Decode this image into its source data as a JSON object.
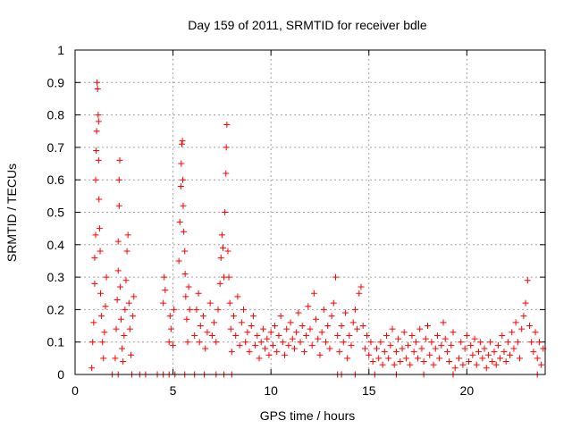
{
  "chart_data": {
    "type": "scatter",
    "title": "Day 159 of 2011, SRMTID for receiver bdle",
    "xlabel": "GPS time / hours",
    "ylabel": "SRMTID / TECUs",
    "xlim": [
      0,
      24
    ],
    "ylim": [
      0,
      1
    ],
    "grid": true,
    "marker": "plus",
    "color": "#ff0000",
    "x_ticks": [
      0,
      5,
      10,
      15,
      20
    ],
    "x_tick_labels": [
      "0",
      "5",
      "10",
      "15",
      "20"
    ],
    "y_ticks": [
      0,
      0.1,
      0.2,
      0.3,
      0.4,
      0.5,
      0.6,
      0.7,
      0.8,
      0.9,
      1
    ],
    "y_tick_labels": [
      "0",
      "0.1",
      "0.2",
      "0.3",
      "0.4",
      "0.5",
      "0.6",
      "0.7",
      "0.8",
      "0.9",
      "1"
    ],
    "series": [
      {
        "name": "SRMTID",
        "points": [
          [
            0.85,
            0.02
          ],
          [
            0.9,
            0.1
          ],
          [
            0.95,
            0.16
          ],
          [
            1.0,
            0.28
          ],
          [
            1.0,
            0.36
          ],
          [
            1.05,
            0.43
          ],
          [
            1.05,
            0.6
          ],
          [
            1.08,
            0.69
          ],
          [
            1.1,
            0.75
          ],
          [
            1.12,
            0.9
          ],
          [
            1.15,
            0.88
          ],
          [
            1.18,
            0.8
          ],
          [
            1.2,
            0.78
          ],
          [
            1.2,
            0.66
          ],
          [
            1.22,
            0.54
          ],
          [
            1.25,
            0.45
          ],
          [
            1.28,
            0.38
          ],
          [
            1.3,
            0.25
          ],
          [
            1.35,
            0.18
          ],
          [
            1.4,
            0.1
          ],
          [
            1.45,
            0.05
          ],
          [
            1.5,
            0.13
          ],
          [
            1.55,
            0.21
          ],
          [
            1.6,
            0.3
          ],
          [
            2.05,
            0.05
          ],
          [
            2.1,
            0.14
          ],
          [
            2.15,
            0.23
          ],
          [
            2.2,
            0.32
          ],
          [
            2.2,
            0.41
          ],
          [
            2.25,
            0.52
          ],
          [
            2.25,
            0.6
          ],
          [
            2.28,
            0.66
          ],
          [
            2.3,
            0.27
          ],
          [
            2.35,
            0.17
          ],
          [
            2.4,
            0.08
          ],
          [
            2.45,
            0.04
          ],
          [
            2.5,
            0.12
          ],
          [
            2.55,
            0.2
          ],
          [
            2.6,
            0.29
          ],
          [
            2.65,
            0.38
          ],
          [
            2.7,
            0.43
          ],
          [
            2.75,
            0.22
          ],
          [
            2.8,
            0.14
          ],
          [
            2.85,
            0.06
          ],
          [
            2.95,
            0.18
          ],
          [
            3.0,
            0.24
          ],
          [
            4.5,
            0.22
          ],
          [
            4.55,
            0.3
          ],
          [
            4.6,
            0.26
          ],
          [
            4.8,
            0.1
          ],
          [
            4.85,
            0.18
          ],
          [
            4.9,
            0.14
          ],
          [
            5.0,
            0.09
          ],
          [
            5.05,
            0.2
          ],
          [
            5.3,
            0.35
          ],
          [
            5.35,
            0.47
          ],
          [
            5.4,
            0.58
          ],
          [
            5.42,
            0.65
          ],
          [
            5.45,
            0.71
          ],
          [
            5.48,
            0.72
          ],
          [
            5.5,
            0.6
          ],
          [
            5.52,
            0.52
          ],
          [
            5.55,
            0.44
          ],
          [
            5.6,
            0.38
          ],
          [
            5.62,
            0.31
          ],
          [
            5.65,
            0.24
          ],
          [
            5.7,
            0.17
          ],
          [
            5.75,
            0.1
          ],
          [
            5.8,
            0.27
          ],
          [
            5.85,
            0.2
          ],
          [
            6.1,
            0.12
          ],
          [
            6.2,
            0.2
          ],
          [
            6.3,
            0.25
          ],
          [
            6.35,
            0.1
          ],
          [
            6.4,
            0.15
          ],
          [
            6.55,
            0.18
          ],
          [
            6.65,
            0.08
          ],
          [
            6.75,
            0.13
          ],
          [
            6.9,
            0.22
          ],
          [
            7.0,
            0.12
          ],
          [
            7.1,
            0.16
          ],
          [
            7.2,
            0.1
          ],
          [
            7.3,
            0.2
          ],
          [
            7.4,
            0.28
          ],
          [
            7.45,
            0.36
          ],
          [
            7.5,
            0.43
          ],
          [
            7.55,
            0.39
          ],
          [
            7.6,
            0.3
          ],
          [
            7.65,
            0.5
          ],
          [
            7.7,
            0.62
          ],
          [
            7.72,
            0.7
          ],
          [
            7.75,
            0.77
          ],
          [
            7.8,
            0.38
          ],
          [
            7.85,
            0.3
          ],
          [
            7.9,
            0.22
          ],
          [
            7.95,
            0.14
          ],
          [
            8.0,
            0.07
          ],
          [
            8.1,
            0.18
          ],
          [
            8.2,
            0.12
          ],
          [
            8.3,
            0.24
          ],
          [
            8.4,
            0.09
          ],
          [
            8.5,
            0.16
          ],
          [
            8.6,
            0.2
          ],
          [
            8.7,
            0.1
          ],
          [
            8.8,
            0.13
          ],
          [
            8.9,
            0.07
          ],
          [
            9.0,
            0.15
          ],
          [
            9.1,
            0.18
          ],
          [
            9.2,
            0.09
          ],
          [
            9.3,
            0.12
          ],
          [
            9.4,
            0.05
          ],
          [
            9.5,
            0.1
          ],
          [
            9.6,
            0.14
          ],
          [
            9.7,
            0.08
          ],
          [
            9.8,
            0.11
          ],
          [
            9.9,
            0.06
          ],
          [
            10.0,
            0.13
          ],
          [
            10.1,
            0.09
          ],
          [
            10.2,
            0.15
          ],
          [
            10.3,
            0.07
          ],
          [
            10.4,
            0.12
          ],
          [
            10.5,
            0.18
          ],
          [
            10.6,
            0.1
          ],
          [
            10.7,
            0.06
          ],
          [
            10.8,
            0.14
          ],
          [
            10.9,
            0.09
          ],
          [
            11.0,
            0.16
          ],
          [
            11.1,
            0.11
          ],
          [
            11.2,
            0.08
          ],
          [
            11.3,
            0.13
          ],
          [
            11.4,
            0.19
          ],
          [
            11.5,
            0.1
          ],
          [
            11.6,
            0.15
          ],
          [
            11.7,
            0.07
          ],
          [
            11.8,
            0.12
          ],
          [
            11.9,
            0.21
          ],
          [
            12.0,
            0.14
          ],
          [
            12.1,
            0.09
          ],
          [
            12.2,
            0.25
          ],
          [
            12.3,
            0.17
          ],
          [
            12.4,
            0.11
          ],
          [
            12.5,
            0.06
          ],
          [
            12.6,
            0.13
          ],
          [
            12.7,
            0.2
          ],
          [
            12.8,
            0.1
          ],
          [
            12.9,
            0.15
          ],
          [
            13.0,
            0.08
          ],
          [
            13.1,
            0.18
          ],
          [
            13.2,
            0.22
          ],
          [
            13.3,
            0.3
          ],
          [
            13.4,
            0.12
          ],
          [
            13.5,
            0.07
          ],
          [
            13.6,
            0.15
          ],
          [
            13.7,
            0.1
          ],
          [
            13.8,
            0.19
          ],
          [
            13.9,
            0.05
          ],
          [
            14.0,
            0.12
          ],
          [
            14.1,
            0.09
          ],
          [
            14.2,
            0.16
          ],
          [
            14.3,
            0.2
          ],
          [
            14.4,
            0.14
          ],
          [
            14.5,
            0.25
          ],
          [
            14.6,
            0.27
          ],
          [
            14.7,
            0.15
          ],
          [
            14.8,
            0.08
          ],
          [
            14.9,
            0.12
          ],
          [
            15.0,
            0.06
          ],
          [
            15.1,
            0.1
          ],
          [
            15.2,
            0.04
          ],
          [
            15.4,
            0.08
          ],
          [
            15.5,
            0.05
          ],
          [
            15.6,
            0.1
          ],
          [
            15.7,
            0.03
          ],
          [
            15.8,
            0.07
          ],
          [
            15.9,
            0.12
          ],
          [
            16.0,
            0.05
          ],
          [
            16.1,
            0.09
          ],
          [
            16.2,
            0.14
          ],
          [
            16.3,
            0.03
          ],
          [
            16.4,
            0.07
          ],
          [
            16.5,
            0.11
          ],
          [
            16.6,
            0.04
          ],
          [
            16.7,
            0.08
          ],
          [
            16.8,
            0.13
          ],
          [
            16.9,
            0.05
          ],
          [
            17.0,
            0.09
          ],
          [
            17.1,
            0.03
          ],
          [
            17.2,
            0.12
          ],
          [
            17.3,
            0.07
          ],
          [
            17.4,
            0.1
          ],
          [
            17.5,
            0.05
          ],
          [
            17.6,
            0.14
          ],
          [
            17.7,
            0.08
          ],
          [
            17.8,
            0.04
          ],
          [
            17.9,
            0.11
          ],
          [
            18.0,
            0.15
          ],
          [
            18.1,
            0.06
          ],
          [
            18.2,
            0.1
          ],
          [
            18.3,
            0.03
          ],
          [
            18.4,
            0.08
          ],
          [
            18.5,
            0.12
          ],
          [
            18.6,
            0.05
          ],
          [
            18.7,
            0.09
          ],
          [
            18.8,
            0.16
          ],
          [
            18.9,
            0.11
          ],
          [
            19.0,
            0.07
          ],
          [
            19.1,
            0.04
          ],
          [
            19.2,
            0.09
          ],
          [
            19.3,
            0.13
          ],
          [
            19.4,
            0.02
          ],
          [
            19.6,
            0.05
          ],
          [
            19.7,
            0.1
          ],
          [
            19.8,
            0.03
          ],
          [
            19.9,
            0.08
          ],
          [
            20.0,
            0.12
          ],
          [
            20.1,
            0.04
          ],
          [
            20.2,
            0.09
          ],
          [
            20.3,
            0.06
          ],
          [
            20.4,
            0.11
          ],
          [
            20.5,
            0.03
          ],
          [
            20.6,
            0.07
          ],
          [
            20.7,
            0.1
          ],
          [
            20.8,
            0.05
          ],
          [
            20.9,
            0.08
          ],
          [
            21.0,
            0.02
          ],
          [
            21.1,
            0.06
          ],
          [
            21.2,
            0.1
          ],
          [
            21.3,
            0.04
          ],
          [
            21.4,
            0.07
          ],
          [
            21.5,
            0.03
          ],
          [
            21.6,
            0.09
          ],
          [
            21.7,
            0.05
          ],
          [
            21.8,
            0.12
          ],
          [
            21.9,
            0.07
          ],
          [
            22.0,
            0.04
          ],
          [
            22.1,
            0.1
          ],
          [
            22.2,
            0.06
          ],
          [
            22.3,
            0.13
          ],
          [
            22.4,
            0.08
          ],
          [
            22.5,
            0.16
          ],
          [
            22.6,
            0.1
          ],
          [
            22.7,
            0.05
          ],
          [
            22.8,
            0.14
          ],
          [
            22.9,
            0.18
          ],
          [
            23.0,
            0.22
          ],
          [
            23.1,
            0.29
          ],
          [
            23.2,
            0.15
          ],
          [
            23.3,
            0.1
          ],
          [
            23.4,
            0.07
          ],
          [
            23.5,
            0.13
          ],
          [
            23.6,
            0.05
          ],
          [
            23.7,
            0.1
          ],
          [
            23.8,
            0.03
          ],
          [
            23.9,
            0.08
          ],
          [
            1.9,
            0.0
          ],
          [
            2.2,
            0.0
          ],
          [
            2.9,
            0.0
          ],
          [
            3.3,
            0.0
          ],
          [
            3.6,
            0.0
          ],
          [
            4.2,
            0.0
          ],
          [
            4.5,
            0.0
          ],
          [
            4.8,
            0.0
          ],
          [
            5.1,
            0.0
          ],
          [
            5.6,
            0.0
          ],
          [
            6.1,
            0.0
          ],
          [
            6.6,
            0.0
          ],
          [
            7.2,
            0.0
          ],
          [
            7.6,
            0.0
          ],
          [
            8.0,
            0.0
          ],
          [
            13.4,
            0.0
          ],
          [
            13.6,
            0.0
          ],
          [
            14.3,
            0.0
          ],
          [
            15.3,
            0.0
          ],
          [
            16.4,
            0.0
          ],
          [
            17.8,
            0.0
          ],
          [
            19.3,
            0.0
          ],
          [
            23.6,
            0.0
          ]
        ]
      }
    ]
  }
}
